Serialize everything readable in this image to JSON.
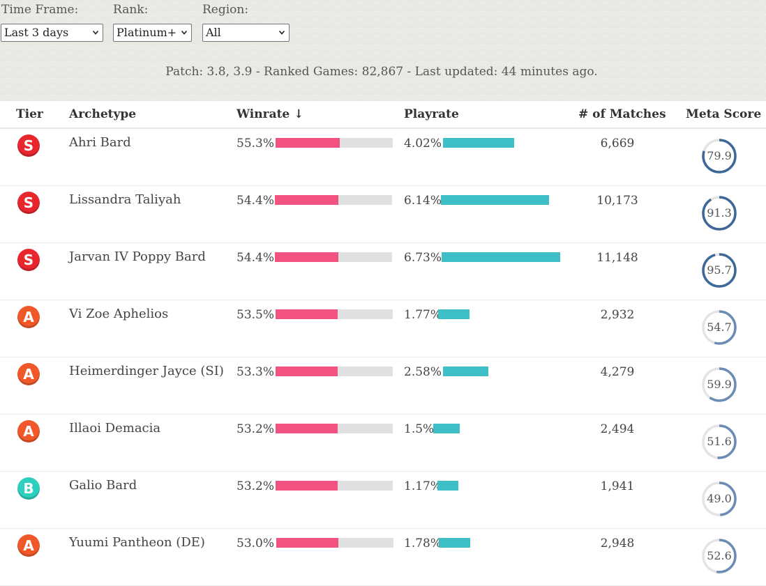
{
  "filters": {
    "time_frame": {
      "label": "Time Frame:",
      "value": "Last 3 days"
    },
    "rank": {
      "label": "Rank:",
      "value": "Platinum+"
    },
    "region": {
      "label": "Region:",
      "value": "All"
    }
  },
  "patch_info": "Patch: 3.8, 3.9 - Ranked Games: 82,867 - Last updated: 44 minutes ago.",
  "columns": {
    "tier": "Tier",
    "archetype": "Archetype",
    "winrate": "Winrate ↓",
    "playrate": "Playrate",
    "matches": "# of Matches",
    "meta_score": "Meta Score"
  },
  "colors": {
    "tier_S": "#e8262e",
    "tier_A": "#f0582a",
    "tier_B": "#2fcfc0",
    "winrate_bar": "#f2527f",
    "playrate_bar": "#3ebfc5"
  },
  "rows": [
    {
      "tier": "S",
      "archetype": "Ahri Bard",
      "winrate": "55.3%",
      "winrate_value": 55.3,
      "playrate": "4.02%",
      "playrate_value": 4.02,
      "matches": "6,669",
      "meta_score": "79.9",
      "meta_value": 79.9
    },
    {
      "tier": "S",
      "archetype": "Lissandra Taliyah",
      "winrate": "54.4%",
      "winrate_value": 54.4,
      "playrate": "6.14%",
      "playrate_value": 6.14,
      "matches": "10,173",
      "meta_score": "91.3",
      "meta_value": 91.3
    },
    {
      "tier": "S",
      "archetype": "Jarvan IV Poppy Bard",
      "winrate": "54.4%",
      "winrate_value": 54.4,
      "playrate": "6.73%",
      "playrate_value": 6.73,
      "matches": "11,148",
      "meta_score": "95.7",
      "meta_value": 95.7
    },
    {
      "tier": "A",
      "archetype": "Vi Zoe Aphelios",
      "winrate": "53.5%",
      "winrate_value": 53.5,
      "playrate": "1.77%",
      "playrate_value": 1.77,
      "matches": "2,932",
      "meta_score": "54.7",
      "meta_value": 54.7
    },
    {
      "tier": "A",
      "archetype": "Heimerdinger Jayce (SI)",
      "winrate": "53.3%",
      "winrate_value": 53.3,
      "playrate": "2.58%",
      "playrate_value": 2.58,
      "matches": "4,279",
      "meta_score": "59.9",
      "meta_value": 59.9
    },
    {
      "tier": "A",
      "archetype": "Illaoi Demacia",
      "winrate": "53.2%",
      "winrate_value": 53.2,
      "playrate": "1.5%",
      "playrate_value": 1.5,
      "matches": "2,494",
      "meta_score": "51.6",
      "meta_value": 51.6
    },
    {
      "tier": "B",
      "archetype": "Galio Bard",
      "winrate": "53.2%",
      "winrate_value": 53.2,
      "playrate": "1.17%",
      "playrate_value": 1.17,
      "matches": "1,941",
      "meta_score": "49.0",
      "meta_value": 49.0
    },
    {
      "tier": "A",
      "archetype": "Yuumi Pantheon (DE)",
      "winrate": "53.0%",
      "winrate_value": 53.0,
      "playrate": "1.78%",
      "playrate_value": 1.78,
      "matches": "2,948",
      "meta_score": "52.6",
      "meta_value": 52.6
    }
  ]
}
